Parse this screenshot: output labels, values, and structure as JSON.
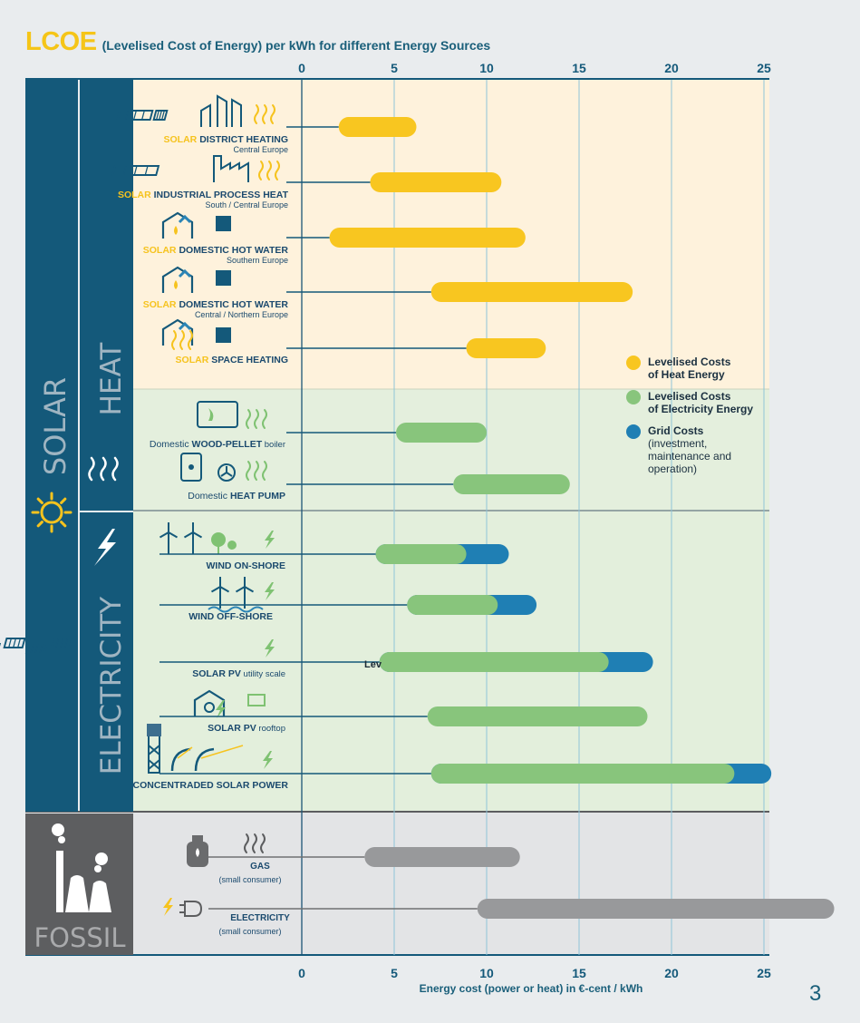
{
  "header": {
    "title_main": "LCOE",
    "title_sub": "(Levelised Cost of Energy) per kWh for different Energy Sources"
  },
  "page_number": "3",
  "colors": {
    "heat": "#f8c620",
    "electricity": "#88c57c",
    "grid": "#1f7fb4",
    "fossil": "#98999b",
    "navy": "#14597a",
    "label_dark": "#1b4a6e",
    "solar_word": "#f6c31e"
  },
  "sections": {
    "solar": "SOLAR",
    "heat": "HEAT",
    "electricity": "ELECTRICITY",
    "fossil": "FOSSIL"
  },
  "legend": [
    {
      "label": "Levelised Costs",
      "label2": "of Heat Energy",
      "color_key": "heat"
    },
    {
      "label": "Levelised Costs",
      "label2": "of Electricity Energy",
      "color_key": "electricity"
    },
    {
      "label": "Grid Costs",
      "label2": "(investment, maintenance and operation)",
      "color_key": "grid"
    }
  ],
  "chart_data": {
    "type": "bar",
    "orientation": "horizontal-range",
    "title": "LCOE (Levelised Cost of Energy) per kWh for different Energy Sources",
    "xlabel": "Energy cost (power or heat) in €-cent / kWh",
    "ylabel": "",
    "xlim": [
      0,
      25
    ],
    "xticks": [
      0,
      5,
      10,
      15,
      20,
      25
    ],
    "grid": true,
    "series": [
      {
        "name": "Levelised Costs of Heat Energy",
        "color_key": "heat"
      },
      {
        "name": "Levelised Costs of Electricity Energy",
        "color_key": "electricity"
      },
      {
        "name": "Grid Costs",
        "color_key": "grid"
      },
      {
        "name": "Fossil",
        "color_key": "fossil"
      }
    ],
    "rows": [
      {
        "prefix": "SOLAR",
        "label": "DISTRICT HEATING",
        "suffix": "",
        "sublabel": "Central Europe",
        "category": "heat",
        "min": 2.0,
        "max": 6.2,
        "grid_max": null
      },
      {
        "prefix": "SOLAR",
        "label": "INDUSTRIAL PROCESS HEAT",
        "suffix": "",
        "sublabel": "South / Central Europe",
        "category": "heat",
        "min": 3.7,
        "max": 10.8,
        "grid_max": null
      },
      {
        "prefix": "SOLAR",
        "label": "DOMESTIC HOT WATER",
        "suffix": "",
        "sublabel": "Southern Europe",
        "category": "heat",
        "min": 1.5,
        "max": 12.1,
        "grid_max": null
      },
      {
        "prefix": "SOLAR",
        "label": "DOMESTIC HOT WATER",
        "suffix": "",
        "sublabel": "Central / Northern Europe",
        "category": "heat",
        "min": 7.0,
        "max": 17.9,
        "grid_max": null
      },
      {
        "prefix": "SOLAR",
        "label": "SPACE HEATING",
        "suffix": "",
        "sublabel": "",
        "category": "heat",
        "min": 8.9,
        "max": 13.2,
        "grid_max": null
      },
      {
        "prefix": "Domestic",
        "label": "WOOD-PELLET",
        "suffix": "boiler",
        "sublabel": "",
        "category": "electricity",
        "min": 5.1,
        "max": 10.0,
        "grid_max": null
      },
      {
        "prefix": "Domestic",
        "label": "HEAT PUMP",
        "suffix": "",
        "sublabel": "",
        "category": "electricity",
        "min": 8.2,
        "max": 14.5,
        "grid_max": null
      },
      {
        "prefix": "",
        "label": "WIND ON-SHORE",
        "suffix": "",
        "sublabel": "",
        "category": "electricity",
        "min": 4.0,
        "max": 8.9,
        "grid_max": 11.2
      },
      {
        "prefix": "",
        "label": "WIND OFF-SHORE",
        "suffix": "",
        "sublabel": "",
        "category": "electricity",
        "min": 5.7,
        "max": 10.6,
        "grid_max": 12.7
      },
      {
        "prefix": "",
        "label": "SOLAR PV",
        "suffix": "utility scale",
        "sublabel": "",
        "category": "electricity",
        "min": 4.2,
        "max": 16.6,
        "grid_max": 19.0
      },
      {
        "prefix": "",
        "label": "SOLAR PV",
        "suffix": "rooftop",
        "sublabel": "",
        "category": "electricity",
        "min": 6.8,
        "max": 18.7,
        "grid_max": null
      },
      {
        "prefix": "",
        "label": "CONCENTRADED SOLAR POWER",
        "suffix": "",
        "sublabel": "",
        "category": "electricity",
        "min": 7.0,
        "max": 23.4,
        "grid_max": 25.4
      },
      {
        "prefix": "",
        "label": "GAS",
        "suffix": "",
        "sublabel": "(small consumer)",
        "category": "fossil",
        "min": 3.4,
        "max": 11.8,
        "grid_max": null
      },
      {
        "prefix": "",
        "label": "ELECTRICITY",
        "suffix": "",
        "sublabel": "(small consumer)",
        "category": "fossil",
        "min": 9.5,
        "max": 28.8,
        "grid_max": null
      }
    ],
    "annotations": [
      "Lev"
    ]
  }
}
